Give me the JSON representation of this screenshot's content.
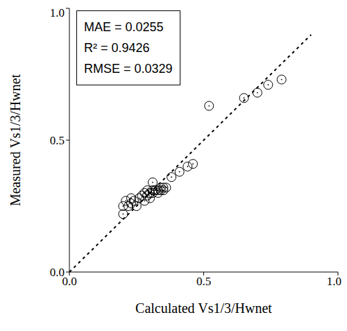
{
  "chart_data": {
    "type": "scatter",
    "xlabel": "Calculated Vs1/3/Hwnet",
    "ylabel": "Measured Vs1/3/Hwnet",
    "annotations": [
      "MAE = 0.0255",
      "R² = 0.9426",
      "RMSE = 0.0329"
    ],
    "x": [
      0.2,
      0.2,
      0.21,
      0.22,
      0.23,
      0.24,
      0.25,
      0.26,
      0.27,
      0.28,
      0.28,
      0.29,
      0.3,
      0.3,
      0.31,
      0.31,
      0.32,
      0.33,
      0.33,
      0.34,
      0.35,
      0.35,
      0.36,
      0.38,
      0.41,
      0.44,
      0.46,
      0.52,
      0.65,
      0.7,
      0.74,
      0.79,
      0.23,
      0.29,
      0.31,
      0.34
    ],
    "values": [
      0.22,
      0.25,
      0.27,
      0.25,
      0.28,
      0.27,
      0.25,
      0.28,
      0.29,
      0.3,
      0.27,
      0.29,
      0.3,
      0.28,
      0.34,
      0.3,
      0.31,
      0.31,
      0.3,
      0.32,
      0.31,
      0.32,
      0.32,
      0.36,
      0.38,
      0.4,
      0.41,
      0.63,
      0.66,
      0.68,
      0.71,
      0.73,
      0.26,
      0.31,
      0.31,
      0.31
    ],
    "color": "#000000",
    "marker": "circle_open",
    "reference_line": {
      "x": [
        0,
        0.9
      ],
      "values": [
        0,
        0.9
      ],
      "line_style": "dashed",
      "color": "#000000"
    },
    "xlim": [
      0,
      1
    ],
    "ylim": [
      0,
      1
    ],
    "xticks": [
      {
        "value": 0,
        "label": "0.0"
      },
      {
        "value": 0.5,
        "label": "0.5"
      },
      {
        "value": 1,
        "label": "1.0"
      }
    ],
    "yticks": [
      {
        "value": 0,
        "label": "0.0"
      },
      {
        "value": 0.5,
        "label": "0.5"
      },
      {
        "value": 1,
        "label": "1.0"
      }
    ],
    "grid": false
  }
}
